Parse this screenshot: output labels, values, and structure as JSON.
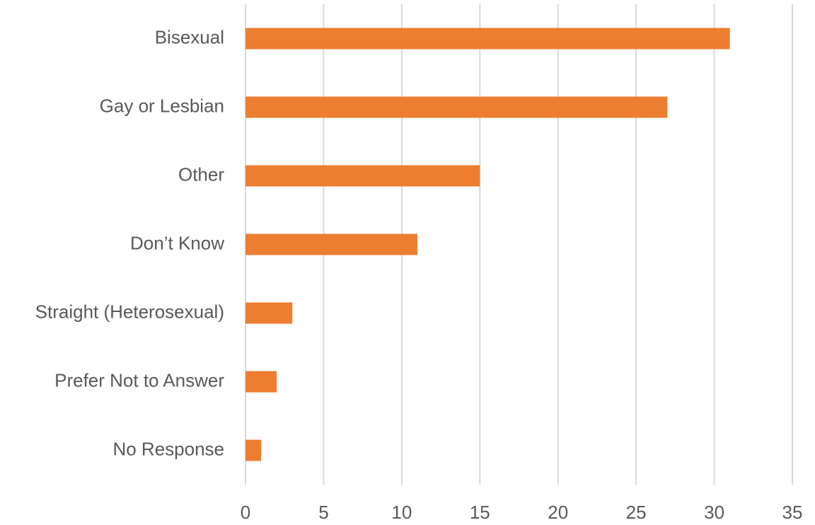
{
  "chart_data": {
    "type": "bar",
    "orientation": "horizontal",
    "categories": [
      "Bisexual",
      "Gay or Lesbian",
      "Other",
      "Don’t Know",
      "Straight (Heterosexual)",
      "Prefer Not to Answer",
      "No Response"
    ],
    "values": [
      31,
      27,
      15,
      11,
      3,
      2,
      1
    ],
    "color": "#ed7d31",
    "xlim": [
      0,
      35
    ],
    "xticks": [
      0,
      5,
      10,
      15,
      20,
      25,
      30,
      35
    ],
    "grid": true
  }
}
